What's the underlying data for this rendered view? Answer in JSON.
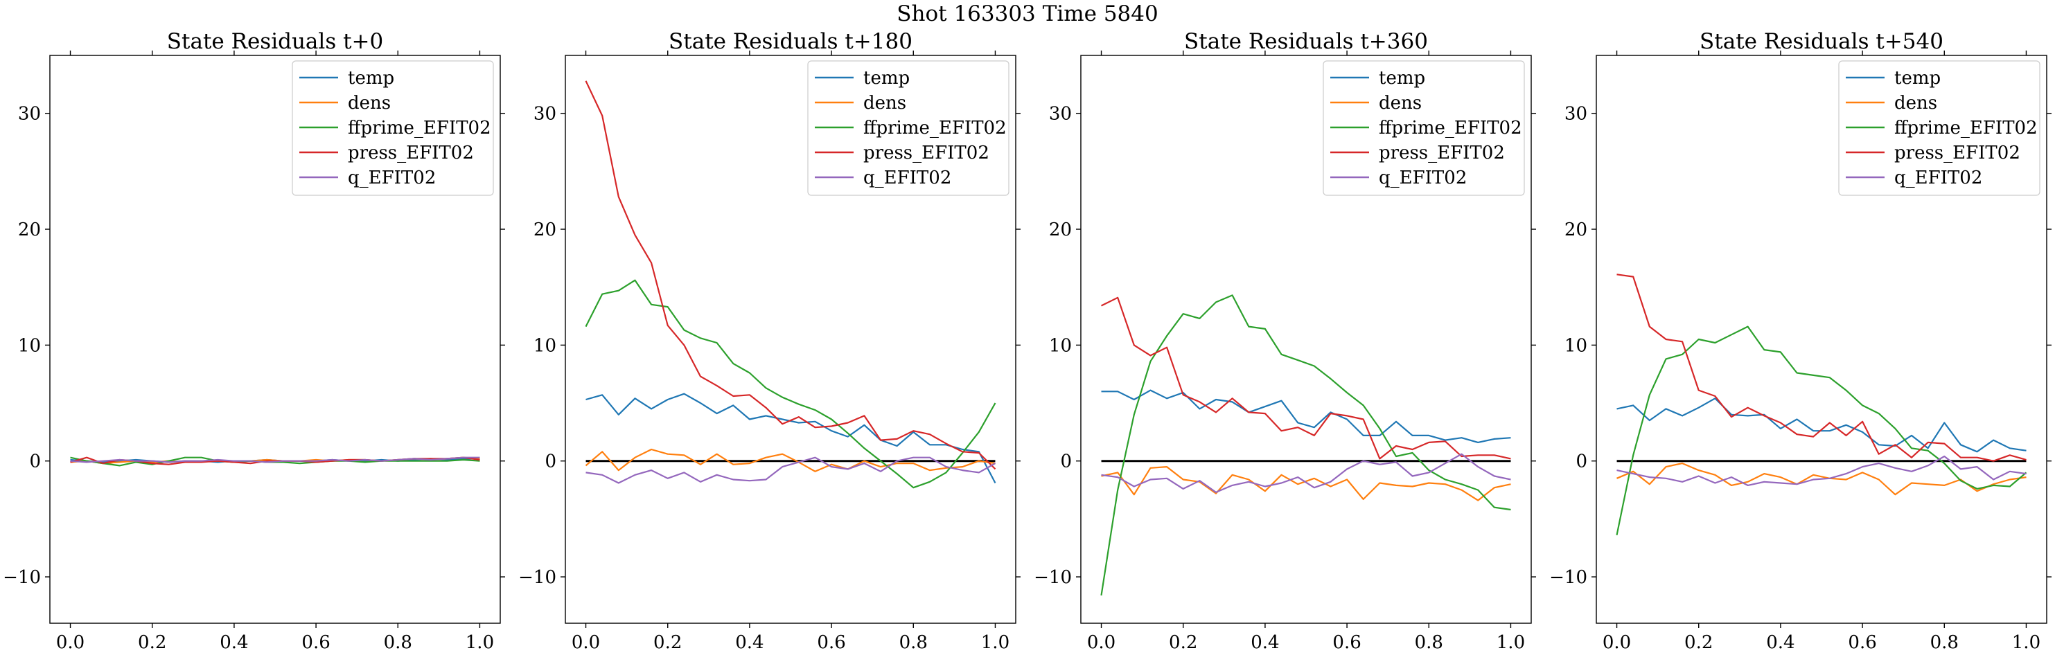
{
  "figure": {
    "title": "Shot 163303   Time 5840"
  },
  "colors": {
    "temp": "#1f77b4",
    "dens": "#ff7f0e",
    "ffprime_EFIT02": "#2ca02c",
    "press_EFIT02": "#d62728",
    "q_EFIT02": "#9467bd",
    "zero_line": "#000000"
  },
  "chart_data": [
    {
      "type": "line",
      "title": "State Residuals t+0",
      "xlabel": "",
      "ylabel": "",
      "xlim": [
        -0.05,
        1.05
      ],
      "ylim": [
        -14,
        35
      ],
      "xticks": [
        "0.0",
        "0.2",
        "0.4",
        "0.6",
        "0.8",
        "1.0"
      ],
      "yticks": [
        "−10",
        "0",
        "10",
        "20",
        "30"
      ],
      "legend": "top-right",
      "zero_line": false,
      "x": [
        0.0,
        0.04,
        0.08,
        0.12,
        0.16,
        0.2,
        0.24,
        0.28,
        0.32,
        0.36,
        0.4,
        0.44,
        0.48,
        0.52,
        0.56,
        0.6,
        0.64,
        0.68,
        0.72,
        0.76,
        0.8,
        0.84,
        0.88,
        0.92,
        0.96,
        1.0
      ],
      "series": [
        {
          "name": "temp",
          "values": [
            0.1,
            0.0,
            -0.1,
            0.0,
            0.1,
            0.0,
            -0.1,
            0.0,
            0.0,
            -0.1,
            0.0,
            0.0,
            0.1,
            0.0,
            0.0,
            0.0,
            0.1,
            0.0,
            0.0,
            0.1,
            0.0,
            0.1,
            0.2,
            0.1,
            0.2,
            0.2
          ]
        },
        {
          "name": "dens",
          "values": [
            -0.1,
            0.0,
            -0.2,
            -0.1,
            0.0,
            -0.1,
            0.0,
            -0.1,
            0.0,
            0.0,
            -0.1,
            0.0,
            0.1,
            0.0,
            0.0,
            0.1,
            0.0,
            0.1,
            0.1,
            0.0,
            0.1,
            0.2,
            0.1,
            0.2,
            0.3,
            0.2
          ]
        },
        {
          "name": "ffprime_EFIT02",
          "values": [
            0.3,
            0.0,
            -0.2,
            -0.4,
            -0.1,
            -0.3,
            0.0,
            0.3,
            0.3,
            0.0,
            -0.1,
            0.0,
            -0.1,
            -0.1,
            -0.2,
            -0.1,
            0.0,
            0.0,
            -0.1,
            0.0,
            0.0,
            0.0,
            0.0,
            0.0,
            0.1,
            0.0
          ]
        },
        {
          "name": "press_EFIT02",
          "values": [
            -0.1,
            0.3,
            -0.2,
            0.1,
            0.0,
            -0.2,
            -0.3,
            -0.1,
            -0.1,
            0.0,
            -0.1,
            -0.2,
            0.0,
            0.0,
            0.0,
            -0.1,
            0.0,
            0.1,
            0.1,
            0.0,
            0.1,
            0.2,
            0.2,
            0.2,
            0.3,
            0.1
          ]
        },
        {
          "name": "q_EFIT02",
          "values": [
            0.0,
            -0.1,
            0.0,
            0.1,
            0.0,
            0.0,
            -0.1,
            0.0,
            0.0,
            0.1,
            0.0,
            0.0,
            -0.1,
            0.0,
            0.0,
            0.0,
            0.1,
            0.0,
            0.1,
            0.0,
            0.1,
            0.2,
            0.1,
            0.2,
            0.3,
            0.3
          ]
        }
      ]
    },
    {
      "type": "line",
      "title": "State Residuals t+180",
      "xlabel": "",
      "ylabel": "",
      "xlim": [
        -0.05,
        1.05
      ],
      "ylim": [
        -14,
        35
      ],
      "xticks": [
        "0.0",
        "0.2",
        "0.4",
        "0.6",
        "0.8",
        "1.0"
      ],
      "yticks": [
        "−10",
        "0",
        "10",
        "20",
        "30"
      ],
      "legend": "top-right",
      "zero_line": true,
      "x": [
        0.0,
        0.04,
        0.08,
        0.12,
        0.16,
        0.2,
        0.24,
        0.28,
        0.32,
        0.36,
        0.4,
        0.44,
        0.48,
        0.52,
        0.56,
        0.6,
        0.64,
        0.68,
        0.72,
        0.76,
        0.8,
        0.84,
        0.88,
        0.92,
        0.96,
        1.0
      ],
      "series": [
        {
          "name": "temp",
          "values": [
            5.3,
            5.7,
            4.0,
            5.4,
            4.5,
            5.3,
            5.8,
            5.0,
            4.1,
            4.8,
            3.6,
            3.9,
            3.6,
            3.3,
            3.4,
            2.6,
            2.1,
            3.1,
            1.8,
            1.3,
            2.5,
            1.4,
            1.4,
            1.0,
            0.8,
            -1.9
          ]
        },
        {
          "name": "dens",
          "values": [
            -0.4,
            0.8,
            -0.8,
            0.3,
            1.0,
            0.6,
            0.5,
            -0.3,
            0.6,
            -0.3,
            -0.2,
            0.3,
            0.6,
            -0.1,
            -0.9,
            -0.3,
            -0.7,
            0.0,
            -0.5,
            -0.2,
            -0.2,
            -0.8,
            -0.6,
            -0.5,
            0.0,
            -0.2
          ]
        },
        {
          "name": "ffprime_EFIT02",
          "values": [
            11.6,
            14.4,
            14.7,
            15.6,
            13.5,
            13.3,
            11.3,
            10.6,
            10.2,
            8.4,
            7.6,
            6.3,
            5.5,
            4.9,
            4.4,
            3.6,
            2.4,
            1.1,
            0.0,
            -1.1,
            -2.3,
            -1.8,
            -1.0,
            0.7,
            2.5,
            5.0
          ]
        },
        {
          "name": "press_EFIT02",
          "values": [
            32.8,
            29.8,
            22.8,
            19.5,
            17.1,
            11.7,
            10.0,
            7.3,
            6.5,
            5.6,
            5.7,
            4.6,
            3.2,
            3.8,
            2.9,
            3.0,
            3.3,
            3.9,
            1.8,
            1.9,
            2.6,
            2.3,
            1.5,
            0.8,
            0.7,
            -0.7
          ]
        },
        {
          "name": "q_EFIT02",
          "values": [
            -1.0,
            -1.2,
            -1.9,
            -1.2,
            -0.8,
            -1.5,
            -1.0,
            -1.8,
            -1.2,
            -1.6,
            -1.7,
            -1.6,
            -0.5,
            -0.1,
            0.3,
            -0.5,
            -0.7,
            -0.2,
            -0.9,
            0.0,
            0.3,
            0.3,
            -0.5,
            -0.8,
            -1.0,
            -0.2
          ]
        }
      ]
    },
    {
      "type": "line",
      "title": "State Residuals t+360",
      "xlabel": "",
      "ylabel": "",
      "xlim": [
        -0.05,
        1.05
      ],
      "ylim": [
        -14,
        35
      ],
      "xticks": [
        "0.0",
        "0.2",
        "0.4",
        "0.6",
        "0.8",
        "1.0"
      ],
      "yticks": [
        "−10",
        "0",
        "10",
        "20",
        "30"
      ],
      "legend": "top-right",
      "zero_line": true,
      "x": [
        0.0,
        0.04,
        0.08,
        0.12,
        0.16,
        0.2,
        0.24,
        0.28,
        0.32,
        0.36,
        0.4,
        0.44,
        0.48,
        0.52,
        0.56,
        0.6,
        0.64,
        0.68,
        0.72,
        0.76,
        0.8,
        0.84,
        0.88,
        0.92,
        0.96,
        1.0
      ],
      "series": [
        {
          "name": "temp",
          "values": [
            6.0,
            6.0,
            5.3,
            6.1,
            5.4,
            5.9,
            4.5,
            5.3,
            5.1,
            4.2,
            4.7,
            5.2,
            3.3,
            2.9,
            4.2,
            3.6,
            2.2,
            2.2,
            3.4,
            2.2,
            2.2,
            1.8,
            2.0,
            1.6,
            1.9,
            2.0
          ]
        },
        {
          "name": "dens",
          "values": [
            -1.3,
            -1.0,
            -2.9,
            -0.6,
            -0.5,
            -1.6,
            -1.8,
            -2.8,
            -1.2,
            -1.6,
            -2.6,
            -1.2,
            -2.0,
            -1.5,
            -2.2,
            -1.6,
            -3.3,
            -1.9,
            -2.1,
            -2.2,
            -1.9,
            -2.0,
            -2.5,
            -3.4,
            -2.3,
            -2.0
          ]
        },
        {
          "name": "ffprime_EFIT02",
          "values": [
            -11.6,
            -2.5,
            4.0,
            8.6,
            10.8,
            12.7,
            12.3,
            13.7,
            14.3,
            11.6,
            11.4,
            9.2,
            8.7,
            8.2,
            7.1,
            5.9,
            4.8,
            2.8,
            0.4,
            0.7,
            -0.8,
            -1.6,
            -2.0,
            -2.5,
            -4.0,
            -4.2
          ]
        },
        {
          "name": "press_EFIT02",
          "values": [
            13.4,
            14.1,
            10.0,
            9.1,
            9.8,
            5.7,
            5.1,
            4.2,
            5.4,
            4.2,
            4.1,
            2.6,
            2.9,
            2.2,
            4.1,
            3.9,
            3.6,
            0.2,
            1.3,
            1.0,
            1.6,
            1.7,
            0.4,
            0.5,
            0.5,
            0.2
          ]
        },
        {
          "name": "q_EFIT02",
          "values": [
            -1.2,
            -1.4,
            -2.2,
            -1.6,
            -1.5,
            -2.4,
            -1.7,
            -2.7,
            -2.1,
            -1.8,
            -2.2,
            -1.9,
            -1.4,
            -2.3,
            -1.8,
            -0.7,
            0.0,
            -0.3,
            -0.1,
            -1.3,
            -1.0,
            -0.2,
            0.6,
            -0.5,
            -1.3,
            -1.6
          ]
        }
      ]
    },
    {
      "type": "line",
      "title": "State Residuals t+540",
      "xlabel": "",
      "ylabel": "",
      "xlim": [
        -0.05,
        1.05
      ],
      "ylim": [
        -14,
        35
      ],
      "xticks": [
        "0.0",
        "0.2",
        "0.4",
        "0.6",
        "0.8",
        "1.0"
      ],
      "yticks": [
        "−10",
        "0",
        "10",
        "20",
        "30"
      ],
      "legend": "top-right",
      "zero_line": true,
      "x": [
        0.0,
        0.04,
        0.08,
        0.12,
        0.16,
        0.2,
        0.24,
        0.28,
        0.32,
        0.36,
        0.4,
        0.44,
        0.48,
        0.52,
        0.56,
        0.6,
        0.64,
        0.68,
        0.72,
        0.76,
        0.8,
        0.84,
        0.88,
        0.92,
        0.96,
        1.0
      ],
      "series": [
        {
          "name": "temp",
          "values": [
            4.5,
            4.8,
            3.5,
            4.5,
            3.9,
            4.6,
            5.4,
            4.0,
            3.9,
            4.0,
            2.8,
            3.6,
            2.6,
            2.6,
            3.1,
            2.5,
            1.4,
            1.3,
            2.2,
            1.1,
            3.3,
            1.4,
            0.8,
            1.8,
            1.1,
            0.9
          ]
        },
        {
          "name": "dens",
          "values": [
            -1.5,
            -0.9,
            -2.0,
            -0.5,
            -0.2,
            -0.8,
            -1.2,
            -2.1,
            -1.8,
            -1.1,
            -1.4,
            -2.0,
            -1.2,
            -1.5,
            -1.6,
            -1.0,
            -1.6,
            -2.9,
            -1.9,
            -2.0,
            -2.1,
            -1.6,
            -2.6,
            -2.0,
            -1.6,
            -1.4
          ]
        },
        {
          "name": "ffprime_EFIT02",
          "values": [
            -6.4,
            0.5,
            5.7,
            8.8,
            9.2,
            10.5,
            10.2,
            10.9,
            11.6,
            9.6,
            9.4,
            7.6,
            7.4,
            7.2,
            6.1,
            4.8,
            4.1,
            2.8,
            1.1,
            0.9,
            -0.2,
            -1.7,
            -2.4,
            -2.1,
            -2.2,
            -1.0
          ]
        },
        {
          "name": "press_EFIT02",
          "values": [
            16.1,
            15.9,
            11.6,
            10.5,
            10.3,
            6.1,
            5.6,
            3.8,
            4.6,
            3.9,
            3.3,
            2.3,
            2.1,
            3.3,
            2.2,
            3.4,
            0.6,
            1.4,
            0.3,
            1.6,
            1.5,
            0.3,
            0.3,
            0.0,
            0.5,
            0.1
          ]
        },
        {
          "name": "q_EFIT02",
          "values": [
            -0.8,
            -1.1,
            -1.4,
            -1.5,
            -1.8,
            -1.3,
            -1.9,
            -1.4,
            -2.1,
            -1.8,
            -1.9,
            -2.0,
            -1.6,
            -1.5,
            -1.1,
            -0.5,
            -0.2,
            -0.6,
            -0.9,
            -0.4,
            0.4,
            -0.7,
            -0.5,
            -1.6,
            -0.9,
            -1.1
          ]
        }
      ]
    }
  ]
}
